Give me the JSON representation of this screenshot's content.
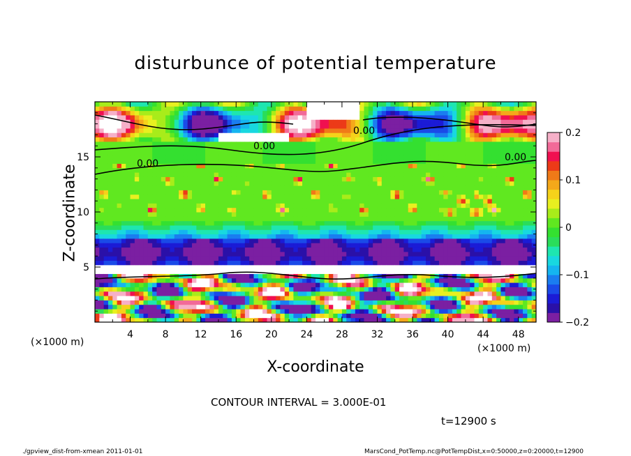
{
  "chart_data": {
    "type": "heatmap",
    "title": "disturbunce of potential temperature",
    "xlabel": "X-coordinate",
    "ylabel": "Z-coordinate",
    "x_unit": "(×1000 m)",
    "y_unit": "(×1000 m)",
    "x_ticks": [
      "4",
      "8",
      "12",
      "16",
      "20",
      "24",
      "28",
      "32",
      "36",
      "40",
      "44",
      "48"
    ],
    "y_ticks": [
      "5",
      "10",
      "15"
    ],
    "xlim": [
      0,
      50
    ],
    "ylim": [
      0,
      20
    ],
    "colorbar_ticks": [
      "0.2",
      "0.1",
      "0",
      "−0.1",
      "−0.2"
    ],
    "colorbar_range": [
      -0.2,
      0.2
    ],
    "contour_labels": [
      "0.00",
      "0.00",
      "0.00",
      "0.00"
    ],
    "contour_interval_text": "CONTOUR INTERVAL = 3.000E-01",
    "time_text": "t=12900 s",
    "footer_left": "./gpview_dist-from-xmean  2011-01-01",
    "footer_right": "MarsCond_PotTemp.nc@PotTempDist,x=0:50000,z=0:20000,t=12900"
  }
}
